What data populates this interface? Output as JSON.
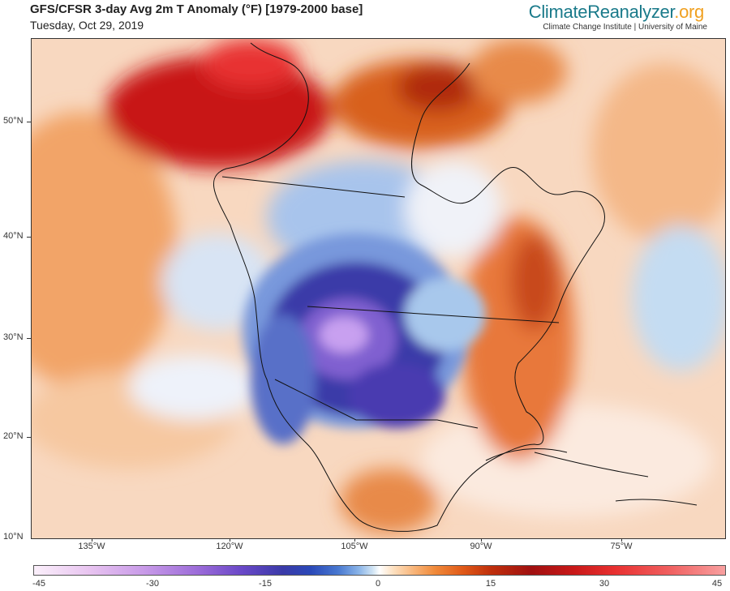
{
  "header": {
    "title": "GFS/CFSR 3-day Avg 2m T Anomaly (°F) [1979-2000 base]",
    "date": "Tuesday, Oct 29, 2019"
  },
  "brand": {
    "name_part1": "ClimateReanalyzer",
    "name_part2": ".org",
    "subtitle": "Climate Change Institute | University of Maine"
  },
  "map": {
    "lat_labels": [
      "50°N",
      "40°N",
      "30°N",
      "20°N",
      "10°N"
    ],
    "lon_labels": [
      "135°W",
      "120°W",
      "105°W",
      "90°W",
      "75°W"
    ],
    "features": [
      "warm-anomaly-alaska-yukon",
      "warm-anomaly-hudson-bay",
      "cold-anomaly-western-central-us",
      "warm-anomaly-eastern-us",
      "cool-anomaly-eastern-pacific",
      "warm-anomaly-northeast-pacific",
      "warm-anomaly-atlantic",
      "warm-anomaly-mexico"
    ],
    "colors": {
      "cold_core": "#3a2aa0",
      "cold_extreme": "#c8a0f0",
      "warm_core": "#c01818",
      "warm_mid": "#e87020",
      "neutral": "#ffffff"
    }
  },
  "colorbar": {
    "labels": [
      "-45",
      "-30",
      "-15",
      "0",
      "15",
      "30",
      "45"
    ],
    "range": [
      -45,
      45
    ]
  }
}
